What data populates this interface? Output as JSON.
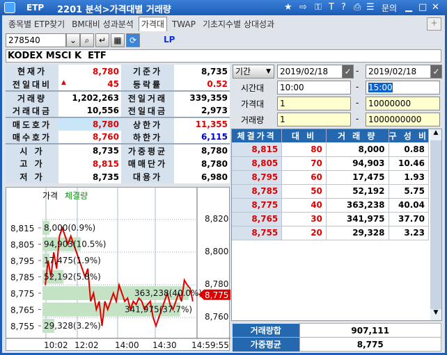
{
  "title": {
    "app": "ETP",
    "screen": "2201 분석>가격대별 거래량",
    "menu_help": "문의"
  },
  "tabs": [
    {
      "label": "종목별 ETP찾기"
    },
    {
      "label": "BM대비 성과분석"
    },
    {
      "label": "가격대",
      "active": true
    },
    {
      "label": "TWAP"
    },
    {
      "label": "기초지수별 상대성과"
    }
  ],
  "toolbar": {
    "code": "278540",
    "lp_label": "LP"
  },
  "name_field": {
    "name": "KODEX MSCI K  ETF"
  },
  "quote": {
    "rows": [
      {
        "l1": "현재가",
        "v1": "8,780",
        "c1": "red",
        "l2": "기준가",
        "v2": "8,735",
        "c2": ""
      },
      {
        "l1": "전일대비",
        "v1": "45",
        "c1": "red",
        "arrow": "▲",
        "l2": "등락률",
        "v2": "0.52",
        "c2": "red"
      },
      {
        "l1": "거래량",
        "v1": "1,202,263",
        "c1": "",
        "l2": "전일거래",
        "v2": "339,359",
        "c2": ""
      },
      {
        "l1": "거래대금",
        "v1": "10,556",
        "c1": "",
        "l2": "전일대금",
        "v2": "2,973",
        "c2": ""
      },
      {
        "l1": "매도호가",
        "v1": "8,780",
        "c1": "red",
        "l2": "상한가",
        "v2": "11,355",
        "c2": "red"
      },
      {
        "l1": "매수호가",
        "v1": "8,760",
        "c1": "red",
        "l2": "하한가",
        "v2": "6,115",
        "c2": "blue"
      },
      {
        "l1": "시  가",
        "v1": "8,735",
        "c1": "",
        "l2": "가중평균",
        "v2": "8,780",
        "c2": ""
      },
      {
        "l1": "고  가",
        "v1": "8,815",
        "c1": "red",
        "l2": "매매단가",
        "v2": "8,780",
        "c2": ""
      },
      {
        "l1": "저  가",
        "v1": "8,735",
        "c1": "",
        "l2": "대용가",
        "v2": "6,980",
        "c2": ""
      }
    ]
  },
  "filters": {
    "period_select": "기간",
    "date_from": "2019/02/18",
    "date_to": "2019/02/18",
    "time_label": "시간대",
    "time_from": "10:00",
    "time_to": "15:00",
    "price_label": "가격대",
    "price_from": "1",
    "price_to": "10000000",
    "vol_label": "거래량",
    "vol_from": "1",
    "vol_to": "1000000000",
    "dash": "-"
  },
  "trades": {
    "headers": [
      "체결가격",
      "대 비",
      "거 래 량",
      "구 성 비"
    ],
    "rows": [
      [
        "8,815",
        "80",
        "8,000",
        "0.88"
      ],
      [
        "8,805",
        "70",
        "94,903",
        "10.46"
      ],
      [
        "8,795",
        "60",
        "17,475",
        "1.93"
      ],
      [
        "8,785",
        "50",
        "52,192",
        "5.75"
      ],
      [
        "8,775",
        "40",
        "363,238",
        "40.04"
      ],
      [
        "8,765",
        "30",
        "341,975",
        "37.70"
      ],
      [
        "8,755",
        "20",
        "29,328",
        "3.23"
      ]
    ]
  },
  "summary": {
    "total_label": "거래량합",
    "total": "907,111",
    "avg_label": "가중평균",
    "avg": "8,775"
  },
  "chart_data": {
    "type": "line",
    "legend": [
      "가격",
      "체결량"
    ],
    "left_ticks": [
      "8,815",
      "8,805",
      "8,795",
      "8,785",
      "8,775",
      "8,765",
      "8,755"
    ],
    "right_ticks": [
      "8,820",
      "8,800",
      "8,780",
      "8,760"
    ],
    "x_ticks": [
      "10:02",
      "12:02",
      "14:00",
      "14:30",
      "14:59:55"
    ],
    "current": "8,775",
    "volume_bars": [
      {
        "price": 8815,
        "label": "8,000(0.9%)",
        "vol": 8000
      },
      {
        "price": 8805,
        "label": "94,903(10.5%)",
        "vol": 94903
      },
      {
        "price": 8795,
        "label": "17,475(1.9%)",
        "vol": 17475
      },
      {
        "price": 8785,
        "label": "52,192(5.8%)",
        "vol": 52192
      },
      {
        "price": 8775,
        "label": "363,238(40.0%)",
        "vol": 363238
      },
      {
        "price": 8765,
        "label": "341,975(37.7%)",
        "vol": 341975
      },
      {
        "price": 8755,
        "label": "29,328(3.2%)",
        "vol": 29328
      }
    ],
    "price_series": [
      8780,
      8795,
      8785,
      8800,
      8790,
      8810,
      8815,
      8810,
      8805,
      8810,
      8805,
      8800,
      8795,
      8790,
      8785,
      8790,
      8770,
      8775,
      8765,
      8770,
      8755,
      8770,
      8765,
      8770,
      8775,
      8770,
      8780,
      8775,
      8770,
      8772,
      8765,
      8770,
      8768,
      8772,
      8770,
      8765,
      8768,
      8770,
      8760,
      8755,
      8760,
      8765,
      8770,
      8775,
      8768,
      8765,
      8770,
      8775,
      8770,
      8783,
      8780,
      8778,
      8770
    ],
    "colors": {
      "price": "#e00000",
      "volume": "#c4e3c4",
      "marker": "#e00000"
    }
  }
}
